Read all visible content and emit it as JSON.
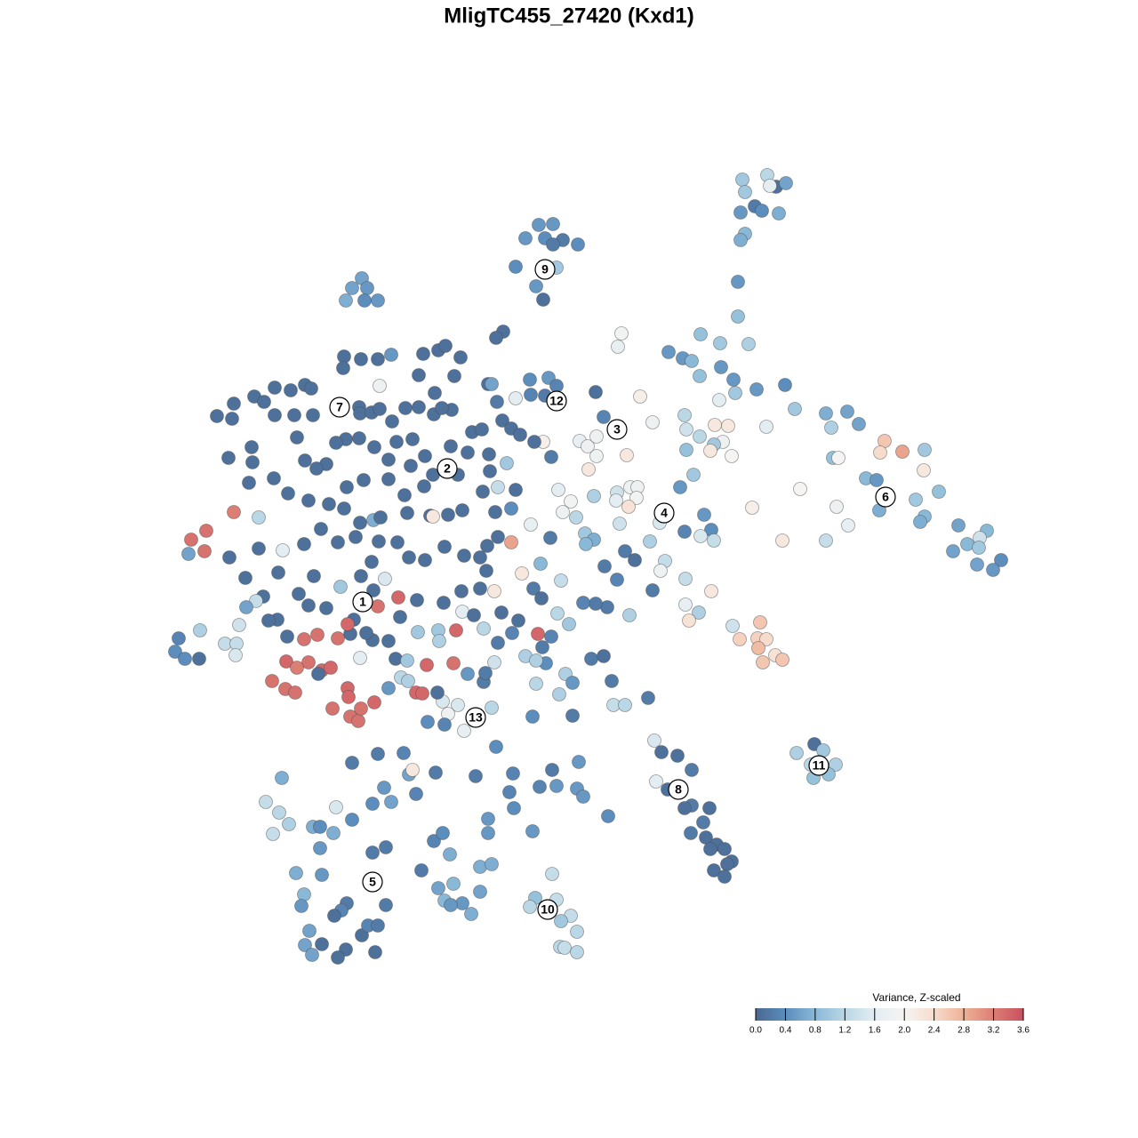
{
  "chart_data": {
    "type": "scatter",
    "title": "MligTC455_27420 (Kxd1)",
    "xlim": [
      0,
      1280
    ],
    "ylim": [
      1280,
      0
    ],
    "colorbar": {
      "title": "Variance, Z-scaled",
      "clim": [
        0,
        3.6
      ],
      "ticks": [
        {
          "value": 0,
          "label": "0.0"
        },
        0.4,
        0.8,
        1.2,
        1.6,
        {
          "value": 2,
          "label": "2.0"
        },
        2.4,
        2.8,
        3.2,
        3.6
      ],
      "colors": [
        "#4a6890",
        "#5b8dbd",
        "#8ab9d7",
        "#bad7e6",
        "#e3edf2",
        "#f6f4f2",
        "#f7dccd",
        "#eeb196",
        "#dc7e74",
        "#c9505f"
      ]
    },
    "x": [
      835,
      863,
      873,
      884,
      866,
      838,
      849,
      833,
      857,
      876,
      838,
      833,
      830,
      830,
      606,
      622,
      591,
      613,
      633,
      650,
      622,
      580,
      626,
      603,
      611,
      407,
      396,
      413,
      389,
      410,
      425,
      699,
      695,
      788,
      810,
      752,
      842,
      768,
      778,
      811,
      787,
      825,
      827,
      851,
      720,
      809,
      883,
      894,
      929,
      953,
      966,
      935,
      770,
      734,
      772,
      804,
      819,
      862,
      787,
      813,
      803,
      772,
      799,
      823,
      937,
      943,
      995,
      1015,
      990,
      1040,
      1039,
      974,
      986,
      1030,
      1056,
      1040,
      1035,
      1078,
      1110,
      1102,
      1088,
      1101,
      1072,
      1126,
      1099,
      1117,
      989,
      941,
      954,
      929,
      880,
      846,
      900,
      670,
      679,
      652,
      661,
      671,
      611,
      671,
      705,
      662,
      709,
      717,
      694,
      716,
      707,
      693,
      628,
      642,
      633,
      648,
      668,
      765,
      780,
      742,
      731,
      770,
      792,
      800,
      788,
      803,
      697,
      658,
      668,
      659,
      703,
      714,
      680,
      748,
      743,
      771,
      734,
      800,
      771,
      786,
      775,
      708,
      694,
      683,
      670,
      656,
      824,
      855,
      852,
      832,
      862,
      853,
      872,
      880,
      858,
      916,
      896,
      926,
      912,
      940,
      915,
      932,
      729,
      736,
      744,
      762,
      778,
      738,
      751,
      778,
      770,
      798,
      791,
      777,
      794,
      806,
      815,
      799,
      823,
      818,
      803,
      815,
      636,
      629,
      603,
      644,
      610,
      614,
      591,
      603,
      688,
      690,
      703,
      599,
      644,
      665,
      679,
      553,
      515,
      498,
      504,
      522,
      481,
      500,
      536,
      558,
      544,
      546,
      526,
      556,
      621,
      651,
      607,
      626,
      649,
      656,
      684,
      599,
      577,
      573,
      578,
      549,
      549,
      535,
      490,
      468,
      460,
      464,
      432,
      419,
      440,
      425,
      454,
      396,
      317,
      299,
      314,
      307,
      325,
      352,
      360,
      375,
      378,
      396,
      360,
      419,
      434,
      474,
      488,
      498,
      506,
      540,
      553,
      333,
      362,
      342,
      339,
      390,
      384,
      376,
      434,
      493,
      510,
      540,
      500,
      520,
      507,
      530,
      348,
      362,
      343,
      351,
      389,
      380,
      407,
      414,
      425,
      422,
      621,
      602,
      626,
      596,
      642,
      631,
      649,
      630,
      635,
      649,
      566,
      558,
      406,
      425,
      387,
      440,
      476,
      493,
      501,
      518,
      386,
      471,
      511,
      549,
      553,
      596,
      617,
      626,
      613,
      597,
      580,
      427,
      489,
      309,
      327,
      343,
      350,
      286,
      297,
      263,
      244,
      261,
      309,
      331,
      352,
      404,
      405,
      418,
      427,
      441,
      456,
      471,
      488,
      508,
      497,
      559,
      565,
      575,
      585,
      601,
      620,
      464,
      446,
      421,
      404,
      389,
      378,
      334,
      283,
      257,
      284,
      343,
      367,
      437,
      462,
      478,
      507,
      531,
      542,
      526,
      550,
      570,
      551,
      515,
      487,
      477,
      455,
      437,
      409,
      390,
      356,
      324,
      308,
      280,
      347,
      370,
      387,
      405,
      420,
      428,
      458,
      484,
      487,
      504,
      520,
      543,
      560,
      580,
      575,
      557,
      597,
      619,
      575,
      560,
      548,
      540,
      547,
      522,
      500,
      478,
      460,
      447,
      426,
      400,
      380,
      361,
      342,
      318,
      291,
      263,
      291,
      215,
      232,
      230,
      212,
      258,
      276,
      313,
      353,
      336,
      296,
      288,
      277,
      347,
      367,
      383,
      406,
      418,
      433,
      448,
      425,
      420,
      469,
      499,
      519,
      540,
      556,
      587,
      608,
      631,
      600,
      609,
      520,
      533,
      564,
      583,
      627,
      640,
      470,
      493,
      513,
      494,
      544,
      560,
      576,
      620,
      605,
      450,
      437,
      419,
      412,
      394,
      398,
      380,
      391,
      357,
      342,
      323,
      312,
      302,
      269,
      225,
      201,
      197,
      208,
      224,
      253,
      266,
      265,
      322,
      347,
      362,
      372,
      334,
      306,
      321,
      332,
      358,
      405,
      445,
      458,
      480,
      510,
      391,
      392,
      374,
      394,
      403,
      406,
      421,
      468,
      475,
      492,
      437,
      451,
      459
    ],
    "y": [
      202,
      197,
      210,
      206,
      209,
      216,
      232,
      239,
      237,
      240,
      263,
      270,
      317,
      356,
      253,
      252,
      268,
      268,
      270,
      275,
      275,
      300,
      301,
      322,
      337,
      313,
      324,
      324,
      338,
      338,
      338,
      375,
      390,
      376,
      386,
      396,
      387,
      403,
      406,
      413,
      423,
      427,
      442,
      438,
      446,
      450,
      433,
      460,
      465,
      463,
      477,
      481,
      467,
      475,
      483,
      478,
      479,
      480,
      491,
      497,
      500,
      506,
      507,
      513,
      515,
      515,
      496,
      508,
      509,
      506,
      529,
      538,
      540,
      562,
      553,
      581,
      587,
      591,
      597,
      605,
      612,
      616,
      620,
      630,
      635,
      641,
      574,
      570,
      591,
      608,
      608,
      571,
      550,
      441,
      469,
      496,
      502,
      491,
      497,
      513,
      512,
      528,
      548,
      548,
      554,
      560,
      570,
      563,
      551,
      564,
      576,
      582,
      558,
      548,
      534,
      588,
      609,
      598,
      579,
      596,
      603,
      608,
      589,
      600,
      607,
      612,
      620,
      630,
      637,
      631,
      642,
      651,
      664,
      665,
      680,
      689,
      698,
      692,
      652,
      683,
      679,
      678,
      704,
      700,
      718,
      719,
      719,
      729,
      737,
      742,
      745,
      837,
      847,
      844,
      860,
      860,
      875,
      871,
      785,
      833,
      846,
      850,
      866,
      879,
      888,
      906,
      909,
      909,
      925,
      937,
      942,
      950,
      955,
      955,
      969,
      972,
      979,
      986,
      758,
      781,
      769,
      768,
      728,
      746,
      738,
      743,
      766,
      793,
      793,
      806,
      805,
      741,
      738,
      796,
      793,
      789,
      803,
      822,
      812,
      815,
      808,
      840,
      767,
      757,
      758,
      745,
      866,
      857,
      885,
      884,
      887,
      896,
      918,
      935,
      870,
      891,
      909,
      921,
      937,
      873,
      869,
      893,
      871,
      866,
      886,
      904,
      902,
      848,
      847,
      858,
      875,
      902,
      914,
      938,
      927,
      930,
      930,
      937,
      908,
      922,
      954,
      959,
      953,
      979,
      946,
      937,
      961,
      975,
      972,
      982,
      984,
      1006,
      1019,
      1016,
      1024,
      1030,
      1018,
      999,
      994,
      1003,
      1013,
      1016,
      1018,
      1028,
      1047,
      1062,
      1063,
      1074,
      1068,
      1077,
      1052,
      1041,
      1041,
      1071,
      983,
      1010,
      1012,
      1020,
      1030,
      1036,
      1048,
      1065,
      1066,
      1071,
      373,
      380,
      404,
      404,
      401,
      399,
      398,
      394,
      389,
      402,
      414,
      422,
      423,
      432,
      432,
      427,
      425,
      434,
      445,
      444,
      448,
      434,
      442,
      436,
      439,
      433,
      437,
      446,
      452,
      454,
      468,
      471,
      467,
      467,
      467,
      458,
      465,
      464,
      460,
      474,
      459,
      458,
      466,
      461,
      459,
      452,
      473,
      482,
      489,
      497,
      514,
      494,
      497,
      503,
      493,
      494,
      498,
      492,
      503,
      515,
      520,
      518,
      522,
      517,
      524,
      513,
      502,
      486,
      483,
      509,
      511,
      521,
      530,
      534,
      534,
      547,
      557,
      539,
      540,
      548,
      527,
      555,
      538,
      543,
      563,
      567,
      572,
      588,
      585,
      582,
      577,
      580,
      581,
      579,
      574,
      553,
      548,
      551,
      572,
      576,
      590,
      605,
      610,
      604,
      614,
      627,
      642,
      625,
      615,
      630,
      627,
      610,
      609,
      604,
      610,
      595,
      612,
      619,
      617,
      576,
      582,
      607,
      597,
      620,
      623,
      627,
      650,
      644,
      648,
      668,
      671,
      676,
      683,
      681,
      684,
      660,
      648,
      632,
      651,
      672,
      682,
      664,
      675,
      678,
      665,
      662,
      665,
      645,
      634,
      653,
      662,
      673,
      688,
      692,
      689,
      698,
      690,
      702,
      711,
      709,
      709,
      721,
      707,
      723,
      712,
      716,
      713,
      694,
      721,
      720,
      712,
      713,
      697,
      718,
      702,
      714,
      719,
      716,
      697,
      698,
      703,
      709,
      718,
      733,
      741,
      741,
      724,
      724,
      737,
      744,
      745,
      754,
      751,
      751,
      766,
      775,
      779,
      758,
      740,
      741,
      743,
      748,
      746,
      774,
      784,
      797,
      806,
      811,
      797,
      790,
      779,
      780,
      779,
      774,
      762,
      766
    ],
    "values": [
      1.0,
      1.2,
      0.1,
      0.6,
      1.6,
      1.0,
      0.2,
      0.5,
      0.4,
      0.7,
      0.8,
      0.7,
      0.5,
      0.9,
      0.5,
      0.5,
      0.5,
      0.4,
      0.2,
      0.4,
      0.2,
      0.4,
      1.0,
      0.5,
      0.1,
      0.6,
      0.6,
      0.5,
      0.7,
      0.4,
      0.5,
      1.9,
      1.7,
      0.9,
      1.0,
      0.5,
      1.1,
      0.5,
      0.8,
      0.5,
      0.9,
      0.5,
      1.0,
      0.5,
      2.1,
      1.6,
      0.4,
      1.0,
      0.7,
      0.6,
      0.6,
      1.1,
      1.2,
      1.8,
      1.4,
      2.2,
      2.2,
      1.6,
      1.2,
      1.8,
      1.0,
      0.9,
      2.2,
      2.0,
      0.9,
      2.0,
      2.6,
      2.9,
      2.4,
      1.0,
      2.2,
      0.8,
      0.5,
      1.0,
      0.9,
      0.8,
      0.7,
      0.6,
      0.8,
      1.4,
      0.8,
      1.0,
      0.6,
      0.4,
      0.6,
      0.5,
      0.7,
      1.8,
      1.7,
      1.3,
      2.2,
      2.1,
      2.0,
      0.1,
      0.3,
      1.7,
      1.8,
      1.8,
      2.1,
      1.8,
      2.2,
      2.2,
      1.8,
      1.8,
      1.4,
      1.9,
      2.3,
      1.6,
      1.6,
      1.9,
      1.8,
      1.2,
      1.1,
      0.5,
      1.0,
      1.5,
      1.1,
      0.3,
      0.5,
      0.4,
      1.5,
      1.3,
      1.4,
      1.0,
      0.7,
      0.8,
      0.2,
      0.1,
      0.2,
      1.3,
      1.8,
      1.3,
      0.2,
      2.2,
      1.7,
      1.1,
      2.3,
      1.1,
      0.3,
      0.2,
      0.2,
      0.3,
      1.4,
      2.6,
      2.5,
      2.5,
      2.4,
      2.7,
      2.3,
      2.6,
      2.6,
      0.1,
      1.1,
      1.0,
      1.2,
      1.1,
      0.9,
      0.9,
      0.2,
      1.5,
      0.1,
      0.1,
      0.2,
      1.6,
      0.1,
      0.2,
      0.1,
      0.1,
      0.2,
      0.2,
      0.1,
      0.1,
      0.1,
      0.1,
      0.1,
      0.1,
      0.1,
      0.1,
      1.1,
      1.1,
      1.2,
      0.5,
      0.2,
      0.4,
      1.1,
      1.1,
      0.2,
      1.3,
      1.2,
      0.4,
      0.2,
      0.2,
      0.1,
      1.2,
      1.5,
      1.5,
      1.8,
      1.7,
      0.4,
      0.3,
      0.2,
      0.4,
      0.2,
      0.2,
      0.5,
      1.4,
      0.2,
      0.5,
      0.3,
      0.5,
      0.5,
      0.5,
      0.4,
      0.5,
      0.3,
      0.3,
      0.4,
      0.5,
      0.5,
      0.2,
      0.2,
      0.3,
      0.6,
      2.2,
      0.5,
      0.4,
      0.6,
      0.2,
      0.3,
      0.2,
      0.7,
      1.3,
      1.2,
      1.3,
      1.1,
      0.7,
      0.4,
      0.7,
      1.5,
      0.4,
      0.5,
      0.2,
      0.2,
      0.2,
      0.3,
      0.4,
      0.7,
      0.7,
      0.7,
      0.7,
      0.5,
      0.8,
      0.5,
      0.2,
      0.3,
      0.1,
      0.2,
      0.6,
      0.8,
      0.6,
      0.8,
      0.5,
      0.5,
      0.7,
      0.6,
      0.1,
      0.6,
      0.6,
      0.1,
      0.1,
      0.1,
      0.3,
      0.2,
      0.1,
      1.3,
      0.9,
      1.3,
      1.2,
      1.3,
      1.0,
      1.2,
      1.2,
      1.3,
      1.2,
      0.1,
      0.1,
      0.1,
      0.1,
      0.1,
      0.5,
      0.1,
      0.1,
      0.1,
      0.1,
      0.1,
      0.1,
      0.1,
      0.1,
      0.6,
      0.4,
      0.5,
      0.3,
      0.2,
      0.3,
      1.6,
      1.8,
      0.1,
      0.1,
      0.1,
      0.1,
      0.1,
      0.1,
      0.1,
      0.1,
      0.1,
      0.1,
      0.1,
      0.1,
      0.1,
      0.1,
      0.1,
      0.1,
      0.1,
      0.1,
      0.1,
      0.1,
      0.1,
      0.1,
      0.1,
      0.2,
      0.1,
      0.1,
      0.1,
      0.1,
      0.2,
      0.1,
      0.1,
      0.1,
      0.1,
      0.1,
      0.1,
      0.1,
      0.1,
      0.1,
      0.1,
      0.1,
      0.1,
      0.1,
      0.1,
      0.1,
      0.1,
      0.1,
      0.1,
      0.1,
      0.1,
      1.0,
      0.1,
      0.1,
      0.1,
      0.1,
      0.1,
      0.1,
      0.1,
      0.1,
      0.1,
      0.1,
      0.1,
      0.1,
      0.1,
      0.1,
      0.1,
      0.1,
      0.7,
      0.1,
      0.1,
      0.1,
      2.2,
      0.1,
      0.1,
      0.1,
      1.3,
      0.1,
      0.4,
      0.1,
      1.7,
      0.2,
      2.9,
      0.1,
      0.1,
      0.1,
      0.1,
      0.1,
      0.1,
      0.1,
      0.1,
      0.1,
      0.1,
      0.1,
      0.1,
      0.1,
      0.1,
      1.6,
      0.1,
      3.2,
      1.2,
      3.3,
      3.3,
      3.3,
      0.6,
      0.1,
      0.1,
      0.1,
      0.1,
      0.1,
      0.1,
      1.3,
      0.6,
      0.1,
      0.1,
      1.0,
      0.1,
      0.1,
      1.5,
      3.4,
      3.3,
      0.1,
      0.1,
      0.1,
      0.1,
      0.1,
      2.2,
      2.2,
      0.8,
      1.3,
      0.2,
      0.1,
      1.6,
      0.1,
      0.1,
      0.1,
      1.2,
      1.0,
      1.0,
      1.0,
      3.4,
      1.1,
      1.2,
      0.2,
      0.3,
      0.3,
      3.4,
      0.1,
      0.1,
      0.1,
      0.1,
      0.1,
      0.1,
      3.3,
      3.4,
      3.3,
      3.3,
      0.1,
      0.1,
      0.1,
      1.4,
      1.1,
      0.3,
      0.4,
      0.4,
      0.1,
      1.3,
      1.3,
      1.5,
      3.4,
      3.3,
      3.4,
      3.4,
      3.2,
      3.3,
      3.3,
      3.3,
      0.1,
      1.6,
      0.1,
      1.0,
      3.4,
      3.3,
      3.4,
      3.4,
      3.3,
      3.3,
      3.3,
      3.3,
      3.4,
      3.4,
      3.4,
      0.1,
      0.5,
      1.2,
      1.1
    ],
    "cluster_labels": [
      {
        "label": "1",
        "x": 408,
        "y": 677
      },
      {
        "label": "2",
        "x": 503,
        "y": 527
      },
      {
        "label": "3",
        "x": 694,
        "y": 483
      },
      {
        "label": "4",
        "x": 747,
        "y": 577
      },
      {
        "label": "5",
        "x": 419,
        "y": 992
      },
      {
        "label": "6",
        "x": 996,
        "y": 559
      },
      {
        "label": "7",
        "x": 382,
        "y": 458
      },
      {
        "label": "8",
        "x": 763,
        "y": 888
      },
      {
        "label": "9",
        "x": 613,
        "y": 303
      },
      {
        "label": "10",
        "x": 616,
        "y": 1023
      },
      {
        "label": "11",
        "x": 921,
        "y": 861
      },
      {
        "label": "12",
        "x": 626,
        "y": 451
      },
      {
        "label": "13",
        "x": 535,
        "y": 807
      }
    ]
  }
}
